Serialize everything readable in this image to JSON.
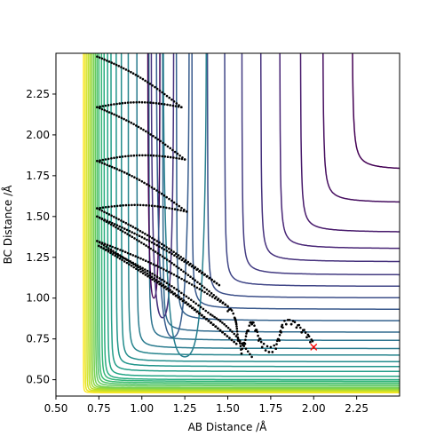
{
  "chart_data": {
    "type": "contour",
    "title": "",
    "xlabel": "AB Distance /Å",
    "ylabel": "BC Distance /Å",
    "xlim": [
      0.5,
      2.5
    ],
    "ylim": [
      0.4,
      2.5
    ],
    "x_ticks": [
      0.5,
      0.75,
      1.0,
      1.25,
      1.5,
      1.75,
      2.0,
      2.25
    ],
    "y_ticks": [
      0.5,
      0.75,
      1.0,
      1.25,
      1.5,
      1.75,
      2.0,
      2.25
    ],
    "x_tick_labels": [
      "0.50",
      "0.75",
      "1.00",
      "1.25",
      "1.50",
      "1.75",
      "2.00",
      "2.25"
    ],
    "y_tick_labels": [
      "0.50",
      "0.75",
      "1.00",
      "1.25",
      "1.50",
      "1.75",
      "2.00",
      "2.25"
    ],
    "grid": false,
    "colormap": "viridis",
    "contour_asymptotes": {
      "x_walls": [
        0.66,
        0.67,
        0.68,
        0.69,
        0.7,
        0.71,
        0.72,
        0.73,
        0.74,
        0.75,
        0.765,
        0.78,
        0.8,
        0.82,
        0.85,
        0.88,
        0.92,
        0.97,
        1.04,
        1.12,
        1.2,
        1.29,
        1.38,
        1.48,
        1.58,
        1.69,
        1.8,
        1.92,
        2.05,
        2.22
      ],
      "y_walls": [
        0.42,
        0.425,
        0.43,
        0.435,
        0.44,
        0.445,
        0.45,
        0.46,
        0.47,
        0.48,
        0.49,
        0.5,
        0.52,
        0.55,
        0.58,
        0.61,
        0.65,
        0.69,
        0.74,
        0.79,
        0.86,
        0.93,
        1.0,
        1.07,
        1.14,
        1.22,
        1.3,
        1.4,
        1.58,
        1.78
      ]
    },
    "valley_contours": [
      {
        "bx": 0.74,
        "level": 0,
        "color": "#440154"
      },
      {
        "bx": 0.79,
        "level": 1,
        "color": "#46327e"
      },
      {
        "bx": 0.85,
        "level": 2,
        "color": "#365c8d"
      },
      {
        "bx": 0.92,
        "level": 3,
        "color": "#277f8e"
      }
    ],
    "trajectory": {
      "name": "trajectory",
      "color": "#000000",
      "start": [
        0.74,
        2.48
      ],
      "end": [
        1.64,
        0.64
      ],
      "segments": [
        {
          "from": [
            0.74,
            2.48
          ],
          "to": [
            1.23,
            2.17
          ]
        },
        {
          "from": [
            1.23,
            2.17
          ],
          "to": [
            0.74,
            2.17
          ]
        },
        {
          "from": [
            0.74,
            2.17
          ],
          "to": [
            1.25,
            1.85
          ]
        },
        {
          "from": [
            1.25,
            1.85
          ],
          "to": [
            0.74,
            1.84
          ]
        },
        {
          "from": [
            0.74,
            1.84
          ],
          "to": [
            1.26,
            1.53
          ]
        },
        {
          "from": [
            1.26,
            1.53
          ],
          "to": [
            0.74,
            1.55
          ]
        },
        {
          "from": [
            0.74,
            1.55
          ],
          "to": [
            1.45,
            1.08
          ]
        },
        {
          "from": [
            1.45,
            1.08
          ],
          "to": [
            0.74,
            1.5
          ]
        },
        {
          "from": [
            0.74,
            1.5
          ],
          "to": [
            1.5,
            0.95
          ]
        },
        {
          "from": [
            1.5,
            0.95
          ],
          "to": [
            0.74,
            1.35
          ]
        },
        {
          "from": [
            0.74,
            1.35
          ],
          "to": [
            1.55,
            0.72
          ]
        },
        {
          "from": [
            1.55,
            0.72
          ],
          "to": [
            0.75,
            1.32
          ]
        },
        {
          "from": [
            0.75,
            1.32
          ],
          "to": [
            1.4,
            0.9
          ]
        },
        {
          "from": [
            1.4,
            0.9
          ],
          "to": [
            1.64,
            0.64
          ]
        }
      ],
      "upper_stripes": [
        {
          "x": [
            0.74,
            0.76,
            0.78,
            0.8,
            0.82,
            0.84,
            0.86
          ],
          "y_top": 2.48,
          "y_bottom": 2.48
        }
      ]
    },
    "wiggle": {
      "points": [
        [
          1.5,
          0.92
        ],
        [
          1.54,
          0.88
        ],
        [
          1.56,
          0.74
        ],
        [
          1.58,
          0.66
        ],
        [
          1.6,
          0.72
        ],
        [
          1.62,
          0.8
        ],
        [
          1.64,
          0.84
        ],
        [
          1.66,
          0.8
        ],
        [
          1.68,
          0.74
        ],
        [
          1.7,
          0.7
        ],
        [
          1.72,
          0.68
        ],
        [
          1.74,
          0.67
        ],
        [
          1.76,
          0.67
        ],
        [
          1.78,
          0.69
        ],
        [
          1.8,
          0.74
        ],
        [
          1.81,
          0.79
        ],
        [
          1.82,
          0.82
        ],
        [
          1.84,
          0.84
        ],
        [
          1.87,
          0.84
        ],
        [
          1.9,
          0.82
        ],
        [
          1.93,
          0.79
        ],
        [
          1.96,
          0.76
        ],
        [
          1.98,
          0.73
        ],
        [
          2.0,
          0.7
        ]
      ]
    },
    "end_marker": {
      "x": 2.0,
      "y": 0.7,
      "symbol": "x",
      "color": "#ff0000"
    }
  }
}
